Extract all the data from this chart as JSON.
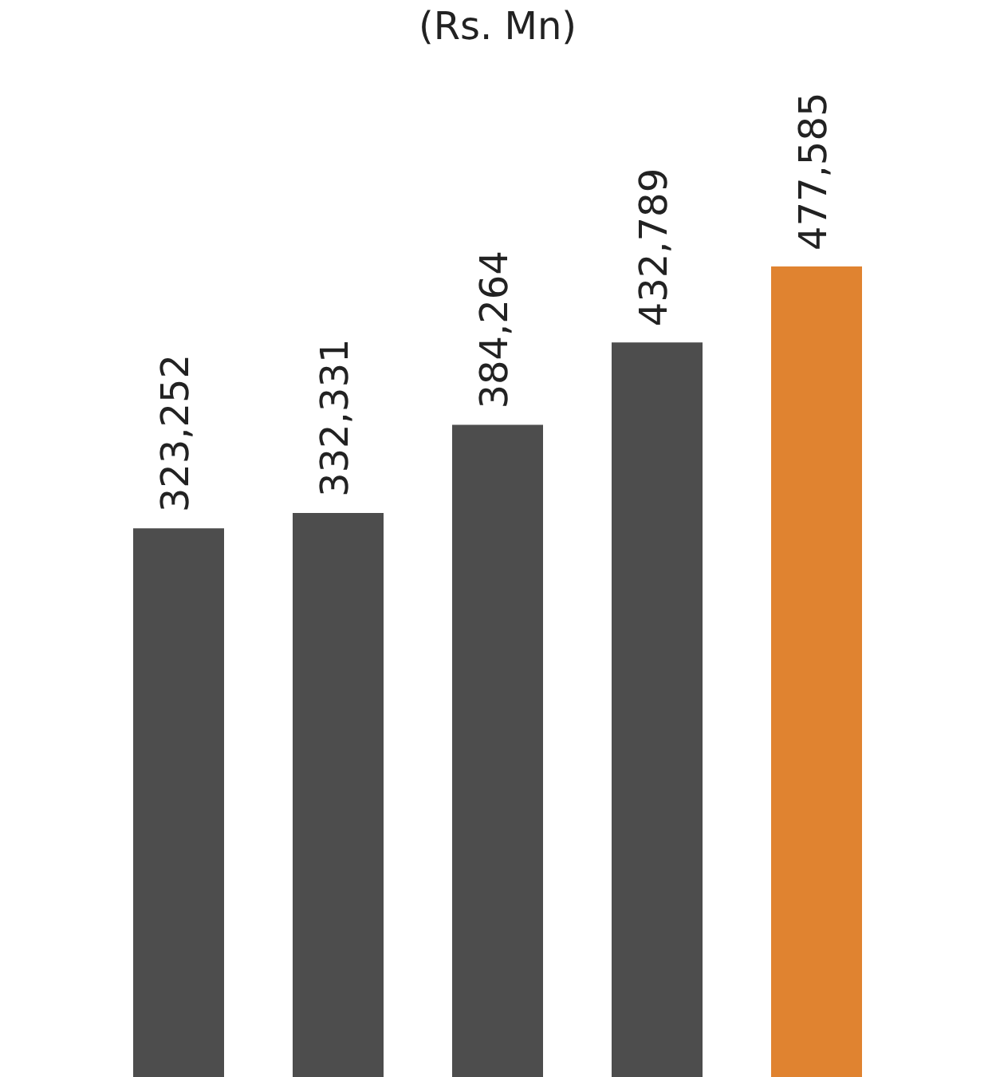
{
  "chart_data": {
    "type": "bar",
    "title": "(Rs. Mn)",
    "categories": [
      null,
      null,
      null,
      null,
      null
    ],
    "values": [
      323252,
      332331,
      384264,
      432789,
      477585
    ],
    "value_labels": [
      "323,252",
      "332,331",
      "384,264",
      "432,789",
      "477,585"
    ],
    "colors": [
      "#4d4d4d",
      "#4d4d4d",
      "#4d4d4d",
      "#4d4d4d",
      "#e08330"
    ],
    "tick_labels": false
  }
}
